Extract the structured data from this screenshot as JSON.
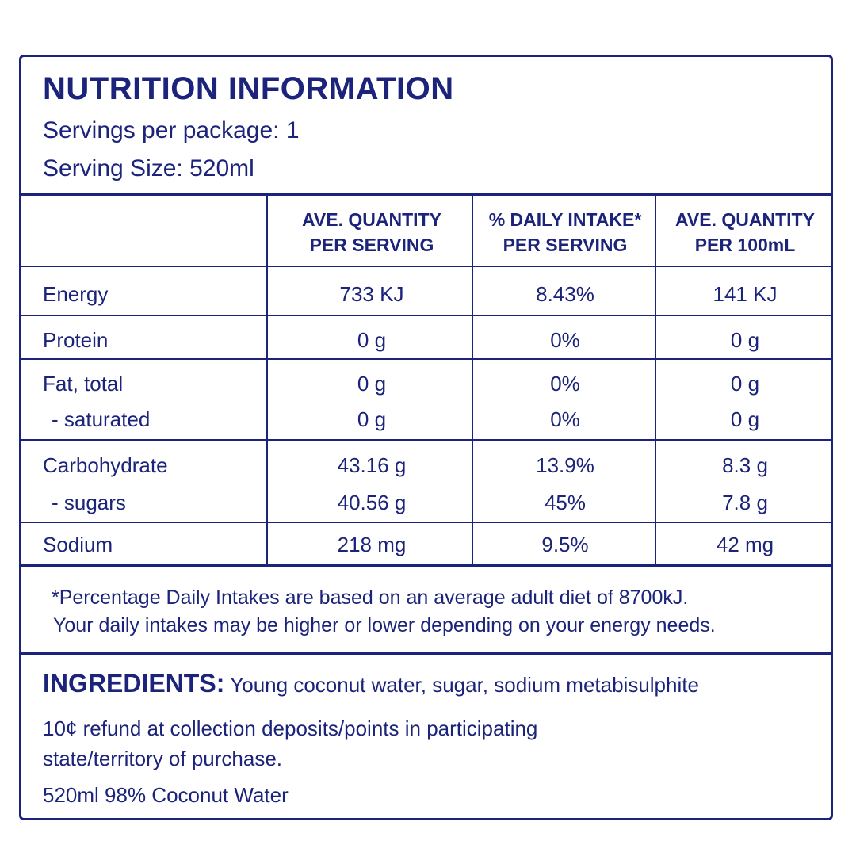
{
  "header": {
    "title": "NUTRITION INFORMATION",
    "servings": "Servings per package: 1",
    "serving_size": "Serving Size: 520ml"
  },
  "columns": [
    {
      "line1": "AVE. QUANTITY",
      "line2": "PER SERVING"
    },
    {
      "line1": "% DAILY INTAKE*",
      "line2": "PER SERVING"
    },
    {
      "line1": "AVE. QUANTITY",
      "line2": "PER 100mL"
    }
  ],
  "rows": {
    "energy": {
      "label": "Energy",
      "per_serving": "733  KJ",
      "daily": "8.43%",
      "per_100": "141  KJ"
    },
    "protein": {
      "label": "Protein",
      "per_serving": "0 g",
      "daily": "0%",
      "per_100": "0 g"
    },
    "fat": {
      "label": "Fat, total",
      "per_serving": "0 g",
      "daily": "0%",
      "per_100": "0 g"
    },
    "saturated": {
      "label": "- saturated",
      "per_serving": "0 g",
      "daily": "0%",
      "per_100": "0 g"
    },
    "carbohydrate": {
      "label": "Carbohydrate",
      "per_serving": "43.16 g",
      "daily": "13.9%",
      "per_100": "8.3 g"
    },
    "sugars": {
      "label": "- sugars",
      "per_serving": "40.56 g",
      "daily": "45%",
      "per_100": "7.8 g"
    },
    "sodium": {
      "label": "Sodium",
      "per_serving": "218 mg",
      "daily": "9.5%",
      "per_100": "42 mg"
    }
  },
  "footnote": {
    "line1": "*Percentage Daily Intakes are based on an average adult diet of 8700kJ.",
    "line2": "Your daily intakes may be higher or lower depending on your energy needs."
  },
  "ingredients": {
    "heading": "INGREDIENTS:",
    "text": "Young coconut water, sugar, sodium metabisulphite"
  },
  "refund": {
    "line1": "10¢ refund at collection deposits/points in participating",
    "line2": "state/territory of purchase."
  },
  "volume": "520ml 98% Coconut Water",
  "colors": {
    "ink": "#1b237a",
    "background": "#ffffff"
  }
}
